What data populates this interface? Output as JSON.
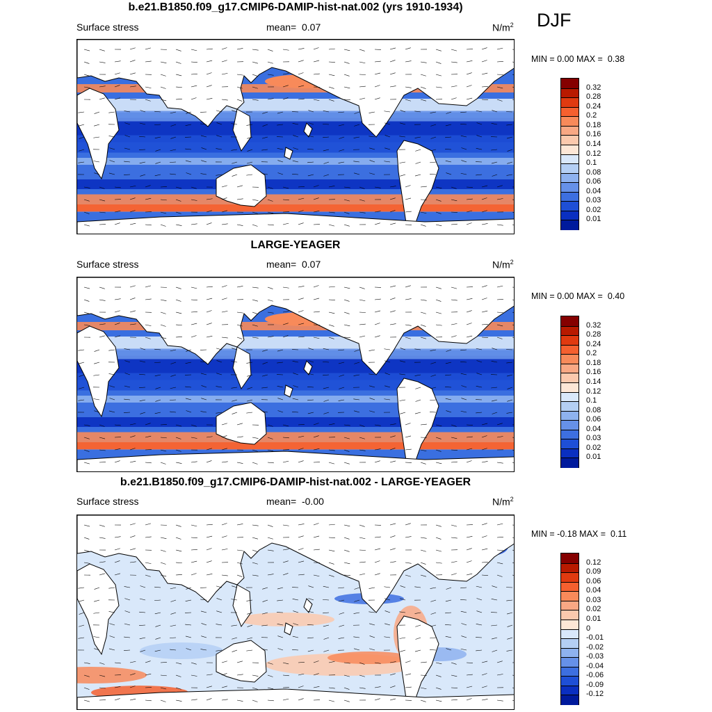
{
  "season": "DJF",
  "panels": [
    {
      "id": "top",
      "title": "b.e21.B1850.f09_g17.CMIP6-DAMIP-hist-nat.002 (yrs 1910-1934)",
      "left_label": "Surface stress",
      "mean_label": "mean=",
      "mean_value": "0.07",
      "units": "N/m",
      "units_sup": "2",
      "min_label": "MIN =",
      "min_value": "0.00",
      "max_label": "MAX =",
      "max_value": "0.38",
      "colorbar_labels": [
        "0.32",
        "0.28",
        "0.24",
        "0.2",
        "0.18",
        "0.16",
        "0.14",
        "0.12",
        "0.1",
        "0.08",
        "0.06",
        "0.04",
        "0.03",
        "0.02",
        "0.01"
      ],
      "colorbar_colors": [
        "#850000",
        "#b81a00",
        "#e03a10",
        "#f5602f",
        "#f88a5a",
        "#f9a884",
        "#fbc9ad",
        "#fde7d6",
        "#d9e8fa",
        "#b4cff4",
        "#8eb2ef",
        "#6691e8",
        "#3d6fe0",
        "#1e4fd6",
        "#0a2fc0",
        "#001a9c"
      ]
    },
    {
      "id": "middle",
      "title": "LARGE-YEAGER",
      "left_label": "Surface stress",
      "mean_label": "mean=",
      "mean_value": "0.07",
      "units": "N/m",
      "units_sup": "2",
      "min_label": "MIN =",
      "min_value": "0.00",
      "max_label": "MAX =",
      "max_value": "0.40",
      "colorbar_labels": [
        "0.32",
        "0.28",
        "0.24",
        "0.2",
        "0.18",
        "0.16",
        "0.14",
        "0.12",
        "0.1",
        "0.08",
        "0.06",
        "0.04",
        "0.03",
        "0.02",
        "0.01"
      ],
      "colorbar_colors": [
        "#850000",
        "#b81a00",
        "#e03a10",
        "#f5602f",
        "#f88a5a",
        "#f9a884",
        "#fbc9ad",
        "#fde7d6",
        "#d9e8fa",
        "#b4cff4",
        "#8eb2ef",
        "#6691e8",
        "#3d6fe0",
        "#1e4fd6",
        "#0a2fc0",
        "#001a9c"
      ]
    },
    {
      "id": "bottom",
      "title": "b.e21.B1850.f09_g17.CMIP6-DAMIP-hist-nat.002 - LARGE-YEAGER",
      "left_label": "Surface stress",
      "mean_label": "mean=",
      "mean_value": "-0.00",
      "units": "N/m",
      "units_sup": "2",
      "min_label": "MIN =",
      "min_value": "-0.18",
      "max_label": "MAX =",
      "max_value": "0.11",
      "colorbar_labels": [
        "0.12",
        "0.09",
        "0.06",
        "0.04",
        "0.03",
        "0.02",
        "0.01",
        "0",
        "-0.01",
        "-0.02",
        "-0.03",
        "-0.04",
        "-0.06",
        "-0.09",
        "-0.12"
      ],
      "colorbar_colors": [
        "#850000",
        "#b81a00",
        "#e03a10",
        "#f5602f",
        "#f88a5a",
        "#f9a884",
        "#fbc9ad",
        "#fde7d6",
        "#d9e8fa",
        "#b4cff4",
        "#8eb2ef",
        "#6691e8",
        "#3d6fe0",
        "#1e4fd6",
        "#0a2fc0",
        "#001a9c"
      ]
    }
  ]
}
